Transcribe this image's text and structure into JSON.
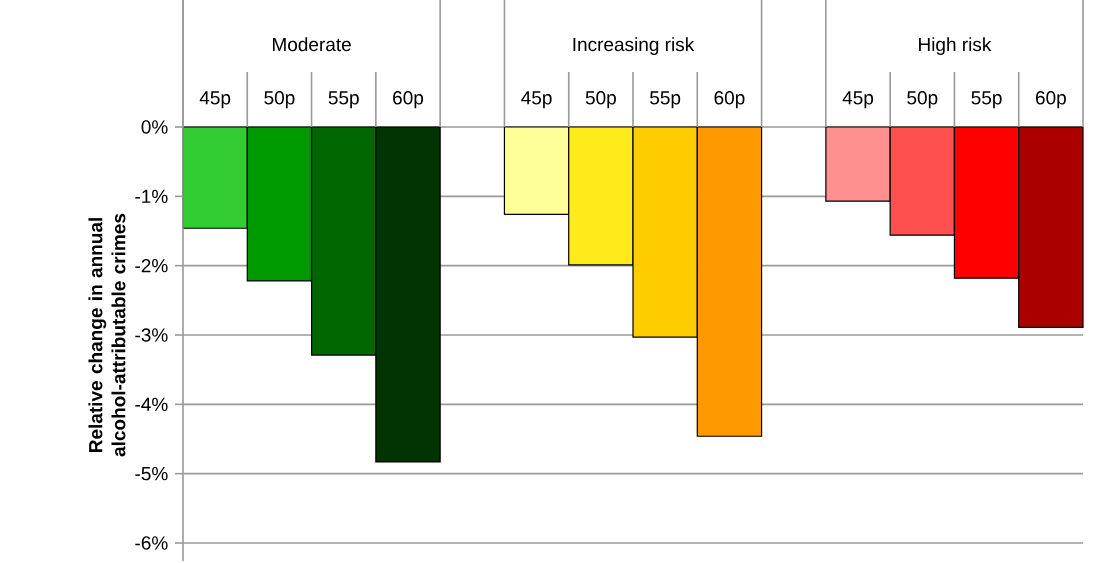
{
  "chart_data": {
    "type": "bar",
    "ylabel": "Relative change in annual alcohol-attributable crimes",
    "categories": [
      "45p",
      "50p",
      "55p",
      "60p",
      null,
      "45p",
      "50p",
      "55p",
      "60p",
      null,
      "45p",
      "50p",
      "55p",
      "60p"
    ],
    "values": [
      -1.46,
      -2.22,
      -3.29,
      -4.83,
      null,
      -1.26,
      -1.99,
      -3.03,
      -4.46,
      null,
      -1.07,
      -1.56,
      -2.18,
      -2.89
    ],
    "colors": [
      "#33cc33",
      "#009900",
      "#006600",
      "#003300",
      null,
      "#ffff99",
      "#ffeb1a",
      "#ffcc00",
      "#ff9900",
      null,
      "#ff9090",
      "#ff5050",
      "#ff0000",
      "#aa0000"
    ],
    "annotations": [
      "Moderate",
      "Increasing risk",
      "High risk"
    ],
    "ylim": [
      -6,
      0
    ],
    "yticks": [
      {
        "value": 0,
        "label": "0%"
      },
      {
        "value": -1,
        "label": "-1%"
      },
      {
        "value": -2,
        "label": "-2%"
      },
      {
        "value": -3,
        "label": "-3%"
      },
      {
        "value": -4,
        "label": "-4%"
      },
      {
        "value": -5,
        "label": "-5%"
      },
      {
        "value": -6,
        "label": "-6%"
      }
    ],
    "grid": "y"
  }
}
